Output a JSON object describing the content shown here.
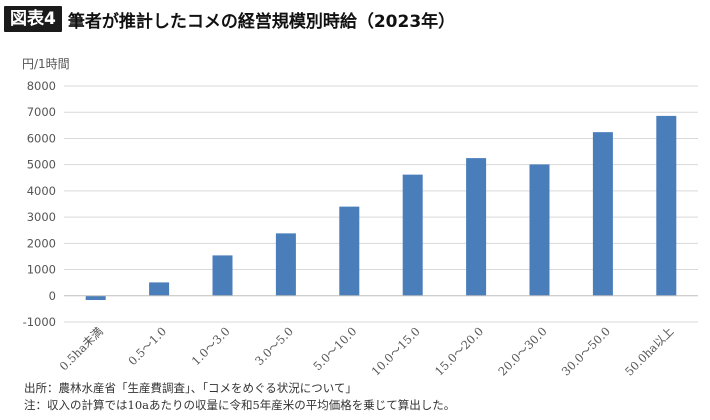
{
  "header": {
    "badge": "図表4",
    "title": "筆者が推計したコメの経営規模別時給（2023年）"
  },
  "notes": {
    "source": "出所：農林水産省「生産費調査」、「コメをめぐる状況について」",
    "note": "注：収入の計算では10aあたりの収量に令和5年産米の平均価格を乗じて算出した。"
  },
  "colors": {
    "bar": "#4a7ebb",
    "grid": "#d9d9d9",
    "axis": "#bfbfbf"
  },
  "chart_data": {
    "type": "bar",
    "unit_label": "円/1時間",
    "categories": [
      "0.5ha未満",
      "0.5～1.0",
      "1.0～3.0",
      "3.0～5.0",
      "5.0～10.0",
      "10.0～15.0",
      "15.0～20.0",
      "20.0～30.0",
      "30.0～50.0",
      "50.0ha以上"
    ],
    "values": [
      -160,
      510,
      1540,
      2380,
      3400,
      4620,
      5250,
      5010,
      6240,
      6860
    ],
    "ylim": [
      -1000,
      8000
    ],
    "yticks": [
      -1000,
      0,
      1000,
      2000,
      3000,
      4000,
      5000,
      6000,
      7000,
      8000
    ],
    "grid": true,
    "legend": false
  }
}
